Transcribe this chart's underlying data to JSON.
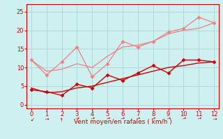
{
  "xlabel": "Vent moyen/en rafales ( km/h )",
  "x": [
    0,
    1,
    2,
    3,
    4,
    5,
    6,
    7,
    8,
    9,
    10,
    11,
    12
  ],
  "line1_y": [
    12,
    8,
    11.5,
    15.5,
    7.5,
    11,
    17,
    15.5,
    17,
    19.5,
    20.5,
    23.5,
    22
  ],
  "line2_y": [
    4,
    3.5,
    2.5,
    5.5,
    4.5,
    8.0,
    6.5,
    8.5,
    10.5,
    8.5,
    12,
    12,
    11.5
  ],
  "line3_y": [
    4.5,
    3.2,
    3.5,
    4.5,
    5.0,
    6.0,
    7.0,
    8.0,
    9.0,
    10.0,
    10.5,
    11.2,
    11.5
  ],
  "line4_y": [
    12,
    9,
    9.5,
    11,
    10,
    13,
    15.5,
    16,
    17,
    19,
    20,
    20.5,
    22
  ],
  "color_light": "#f08080",
  "color_dark": "#cc0000",
  "bg_color": "#cef0f0",
  "grid_color": "#b0d8d8",
  "ylim": [
    -1,
    27
  ],
  "xlim": [
    -0.3,
    12.3
  ],
  "yticks": [
    0,
    5,
    10,
    15,
    20,
    25
  ],
  "xticks": [
    0,
    1,
    2,
    3,
    4,
    5,
    6,
    7,
    8,
    9,
    10,
    11,
    12
  ],
  "arrow_rotations": [
    180,
    315,
    45,
    330,
    330,
    330,
    330,
    330,
    330,
    330,
    330,
    330,
    315
  ]
}
